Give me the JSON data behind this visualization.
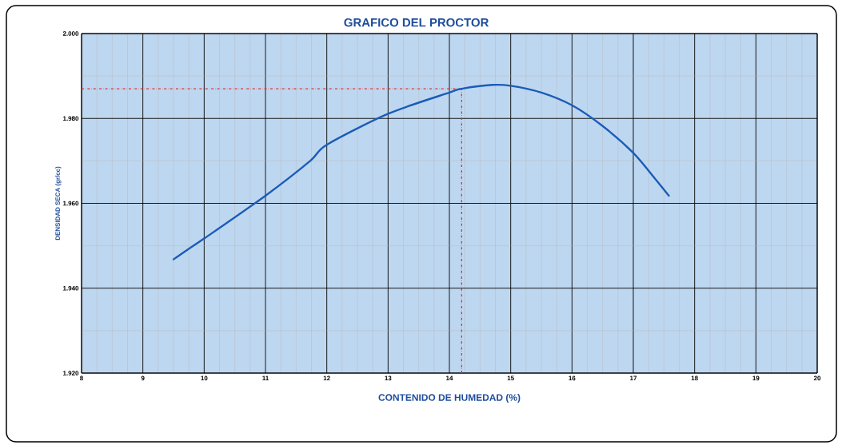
{
  "chart_data": {
    "type": "line",
    "title": "GRAFICO DEL PROCTOR",
    "xlabel": "CONTENIDO  DE HUMEDAD  (%)",
    "ylabel": "DENSIDAD SECA (gr/cc)",
    "series": [
      {
        "color": "#1a5cb8",
        "x": [
          9.5,
          9.72,
          10,
          11,
          11.73,
          12,
          13,
          14,
          14.2,
          14.7,
          15,
          15.5,
          16,
          16.5,
          17,
          17.35,
          17.58
        ],
        "values": [
          1.9468,
          1.949,
          1.9517,
          1.9618,
          1.97,
          1.9738,
          1.9811,
          1.9861,
          1.987,
          1.9879,
          1.9877,
          1.9861,
          1.9831,
          1.9782,
          1.9719,
          1.9659,
          1.9618
        ]
      }
    ],
    "xlim": [
      8,
      20
    ],
    "ylim": [
      1.92,
      2.0
    ],
    "xticks": [
      8,
      9,
      10,
      11,
      12,
      13,
      14,
      15,
      16,
      17,
      18,
      19,
      20
    ],
    "yticks": [
      {
        "value": 1.92,
        "label": "1.920"
      },
      {
        "value": 1.94,
        "label": "1.940"
      },
      {
        "value": 1.96,
        "label": "1.960"
      },
      {
        "value": 1.98,
        "label": "1.980"
      },
      {
        "value": 2.0,
        "label": "2.000"
      }
    ],
    "grid": true,
    "line_style": "solid",
    "ref_lines": [
      {
        "axis": "y",
        "value": 1.987,
        "color": "#e03030",
        "line_style": "dashdot"
      },
      {
        "axis": "x",
        "value": 14.2,
        "color": "#e03030",
        "line_style": "dashdot"
      }
    ]
  }
}
